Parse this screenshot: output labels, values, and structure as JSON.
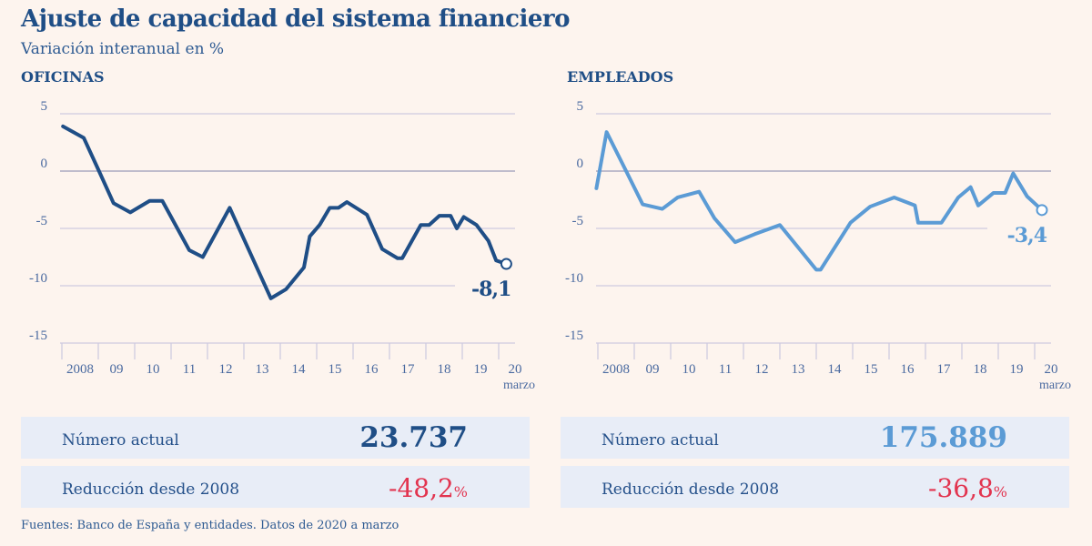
{
  "title": "Ajuste de capacidad del sistema financiero",
  "subtitle": "Variación interanual en %",
  "source": "Fuentes: Banco de España y entidades. Datos de 2020 a marzo",
  "colors": {
    "offices": "#1f4e86",
    "employees": "#5b9bd5",
    "negative": "#e2344f",
    "background": "#fdf4ee",
    "box": "#e8edf7"
  },
  "panels": [
    {
      "heading": "OFICINAS",
      "current_label": "Número actual",
      "current_value": "23.737",
      "reduction_label": "Reducción desde 2008",
      "reduction_value": "-48,2",
      "reduction_unit": "%"
    },
    {
      "heading": "EMPLEADOS",
      "current_label": "Número actual",
      "current_value": "175.889",
      "reduction_label": "Reducción desde 2008",
      "reduction_value": "-36,8",
      "reduction_unit": "%"
    }
  ],
  "chart_data": [
    {
      "type": "line",
      "title": "OFICINAS",
      "color": "#1f4e86",
      "ylim": [
        -15,
        5
      ],
      "yticks": [
        "5",
        "0",
        "-5",
        "-10",
        "-15"
      ],
      "ytick_values": [
        5,
        0,
        -5,
        -10,
        -15
      ],
      "xlim": [
        2008,
        2020.2
      ],
      "xtick_labels": [
        "2008",
        "09",
        "10",
        "11",
        "12",
        "13",
        "14",
        "15",
        "16",
        "17",
        "18",
        "19",
        "20"
      ],
      "x_extra_label": "marzo",
      "end_label": "-8,1",
      "grid": true,
      "x": [
        2008.03,
        2008.6,
        2009.02,
        2009.42,
        2009.88,
        2010.41,
        2010.76,
        2011.5,
        2011.87,
        2012.61,
        2013.74,
        2014.16,
        2014.65,
        2014.81,
        2015.08,
        2015.36,
        2015.6,
        2015.83,
        2016.38,
        2016.8,
        2017.22,
        2017.35,
        2017.86,
        2018.09,
        2018.37,
        2018.68,
        2018.85,
        2019.04,
        2019.39,
        2019.72,
        2019.93,
        2020.21
      ],
      "y": [
        3.9,
        2.9,
        0,
        -2.8,
        -3.6,
        -2.6,
        -2.6,
        -6.9,
        -7.5,
        -3.2,
        -11.1,
        -10.3,
        -8.4,
        -5.7,
        -4.7,
        -3.2,
        -3.2,
        -2.7,
        -3.8,
        -6.8,
        -7.6,
        -7.6,
        -4.7,
        -4.7,
        -3.9,
        -3.9,
        -5.0,
        -4.0,
        -4.7,
        -6.1,
        -7.8,
        -8.1
      ]
    },
    {
      "type": "line",
      "title": "EMPLEADOS",
      "color": "#5b9bd5",
      "ylim": [
        -15,
        5
      ],
      "yticks": [
        "5",
        "0",
        "-5",
        "-10",
        "-15"
      ],
      "ytick_values": [
        5,
        0,
        -5,
        -10,
        -15
      ],
      "xlim": [
        2008,
        2020.2
      ],
      "xtick_labels": [
        "2008",
        "09",
        "10",
        "11",
        "12",
        "13",
        "14",
        "15",
        "16",
        "17",
        "18",
        "19",
        "20"
      ],
      "x_extra_label": "marzo",
      "end_label": "-3,4",
      "grid": true,
      "x": [
        2007.96,
        2008.24,
        2008.73,
        2009.23,
        2009.77,
        2010.19,
        2010.78,
        2011.2,
        2011.77,
        2012.31,
        2013.0,
        2014.0,
        2014.12,
        2014.94,
        2015.48,
        2016.14,
        2016.71,
        2016.8,
        2017.44,
        2017.9,
        2018.24,
        2018.45,
        2018.87,
        2019.19,
        2019.41,
        2019.79,
        2020.2
      ],
      "y": [
        -1.5,
        3.4,
        0.3,
        -2.9,
        -3.3,
        -2.3,
        -1.8,
        -4.1,
        -6.2,
        -5.5,
        -4.7,
        -8.6,
        -8.6,
        -4.5,
        -3.1,
        -2.3,
        -3.0,
        -4.5,
        -4.5,
        -2.3,
        -1.4,
        -3.0,
        -1.9,
        -1.9,
        -0.2,
        -2.2,
        -3.4
      ]
    }
  ]
}
